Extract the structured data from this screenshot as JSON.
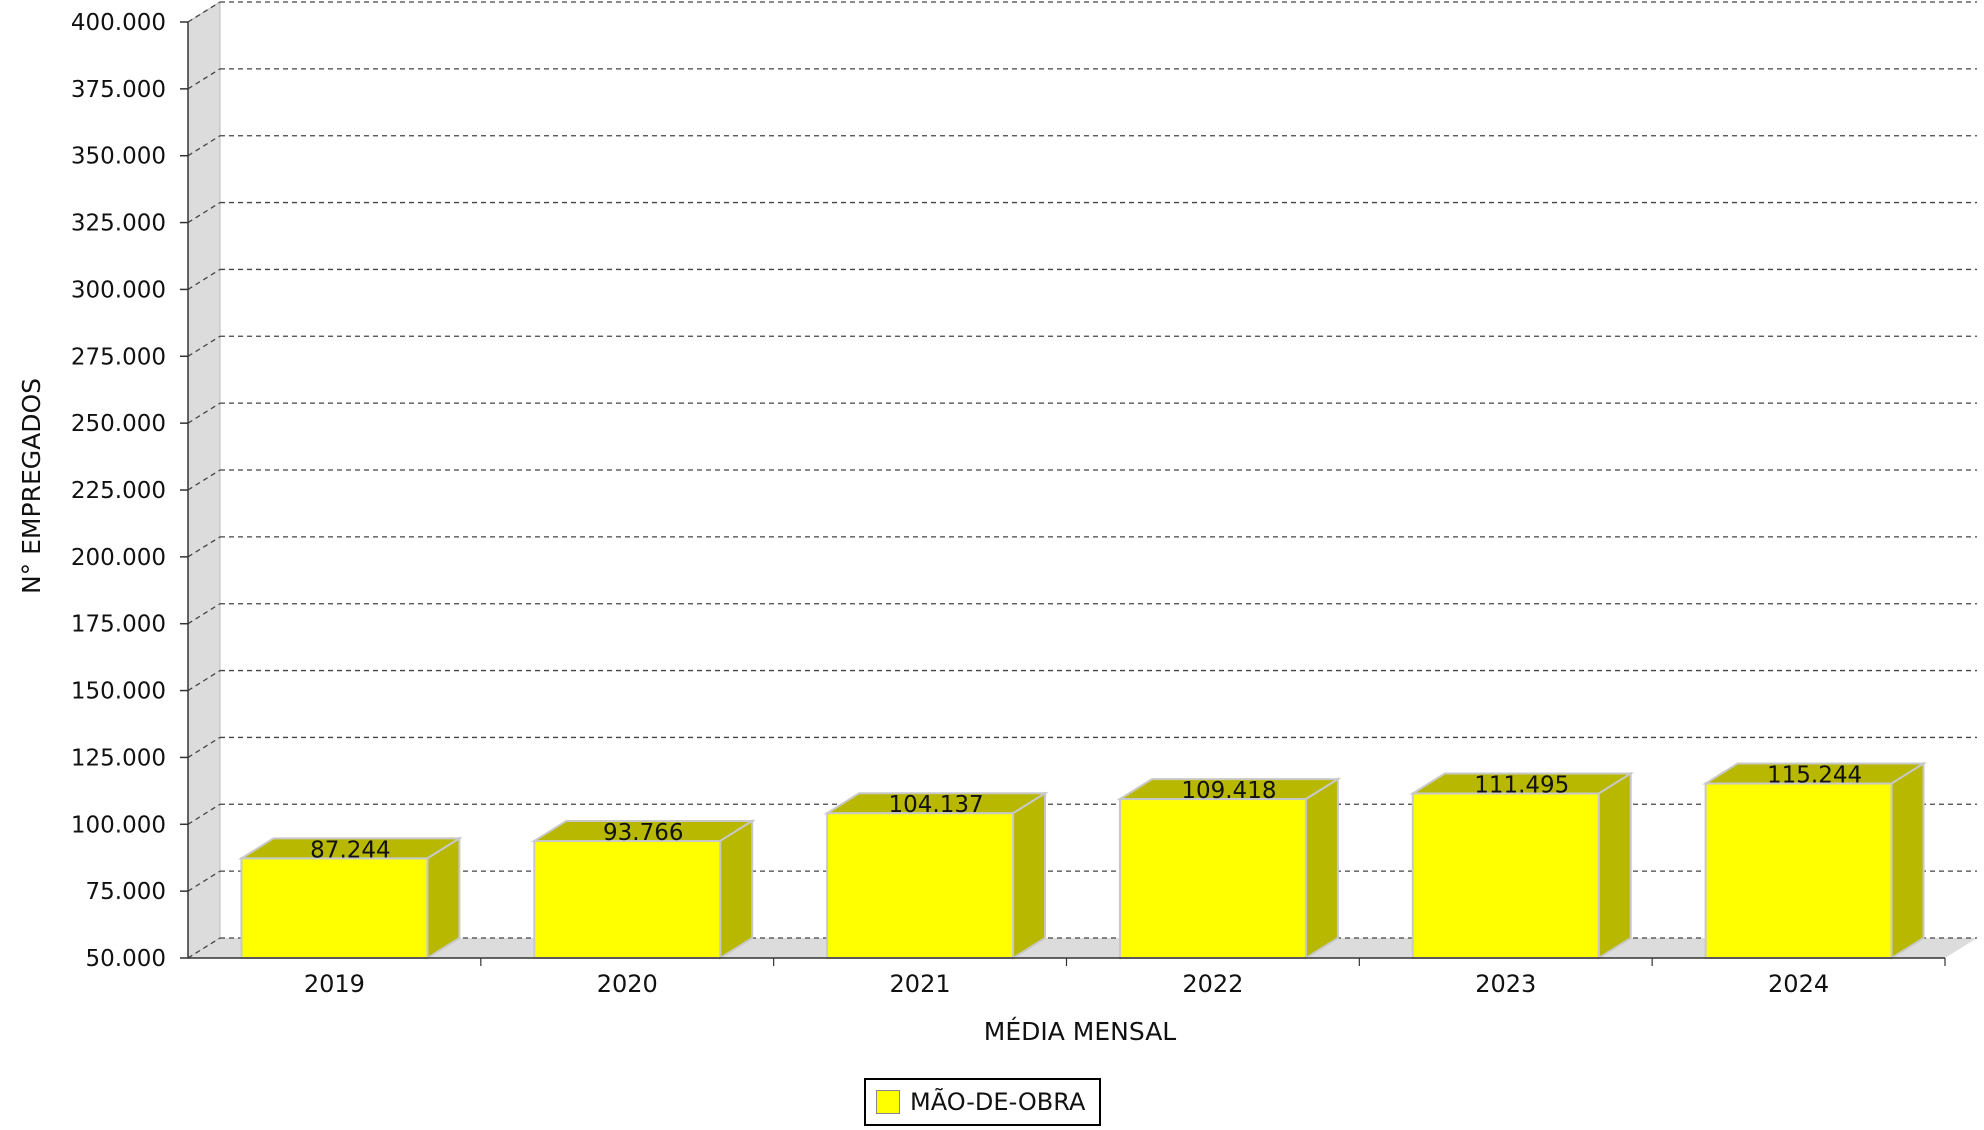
{
  "chart_data": {
    "type": "bar",
    "title": "",
    "xlabel": "MÉDIA MENSAL",
    "ylabel": "N° EMPREGADOS",
    "categories": [
      "2019",
      "2020",
      "2021",
      "2022",
      "2023",
      "2024"
    ],
    "series": [
      {
        "name": "MÃO-DE-OBRA",
        "values": [
          87244,
          93766,
          104137,
          109418,
          111495,
          115244
        ]
      }
    ],
    "value_labels": [
      "87.244",
      "93.766",
      "104.137",
      "109.418",
      "111.495",
      "115.244"
    ],
    "ylim": [
      50000,
      400000
    ],
    "yticks": [
      50000,
      75000,
      100000,
      125000,
      150000,
      175000,
      200000,
      225000,
      250000,
      275000,
      300000,
      325000,
      350000,
      375000,
      400000
    ],
    "ytick_labels": [
      "50.000",
      "75.000",
      "100.000",
      "125.000",
      "150.000",
      "175.000",
      "200.000",
      "225.000",
      "250.000",
      "275.000",
      "300.000",
      "325.000",
      "350.000",
      "375.000",
      "400.000"
    ],
    "grid": true,
    "legend_position": "bottom-center",
    "bar_color": "#ffff00",
    "bar_side_color": "#b8b800",
    "wall_color": "#dcdcdc"
  }
}
